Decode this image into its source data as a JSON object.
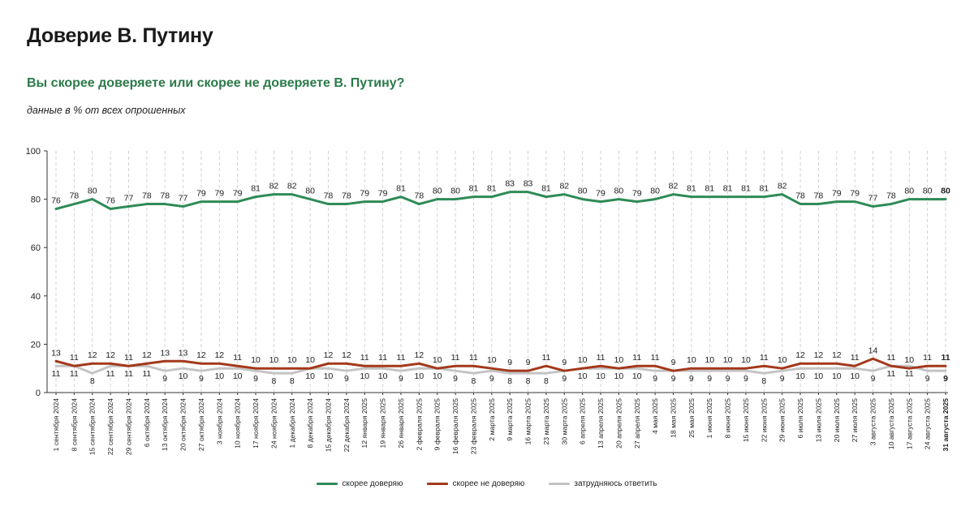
{
  "header": {
    "title": "Доверие В. Путину",
    "question": "Вы скорее доверяете или скорее не доверяете В. Путину?",
    "note": "данные в % от всех опрошенных"
  },
  "chart_data": {
    "type": "line",
    "ylim": [
      0,
      100
    ],
    "yticks": [
      0,
      20,
      40,
      60,
      80,
      100
    ],
    "grid": "vertical dashed",
    "legend_position": "bottom-center",
    "x": [
      "1 сентября 2024",
      "8 сентября 2024",
      "15 сентября 2024",
      "22 сентября 2024",
      "29 сентября 2024",
      "6 октября 2024",
      "13 октября 2024",
      "20 октября 2024",
      "27 октября 2024",
      "3 ноября 2024",
      "10 ноября 2024",
      "17 ноября 2024",
      "24 ноября 2024",
      "1 декабря 2024",
      "8 декабря 2024",
      "15 декабря 2024",
      "22 декабря 2024",
      "12 января 2025",
      "19 января 2025",
      "26 января 2025",
      "2 февраля 2025",
      "9 февраля 2025",
      "16 февраля 2025",
      "23 февраля 2025",
      "2 марта 2025",
      "9 марта 2025",
      "16 марта 2025",
      "23 марта 2025",
      "30 марта 2025",
      "6 апреля 2025",
      "13 апреля 2025",
      "20 апреля 2025",
      "27 апреля 2025",
      "4 мая 2025",
      "18 мая 2025",
      "25 мая 2025",
      "1 июня 2025",
      "8 июня 2025",
      "15 июня 2025",
      "22 июня 2025",
      "29 июня 2025",
      "6 июля 2025",
      "13 июля 2025",
      "20 июля 2025",
      "27 июля 2025",
      "3 августа 2025",
      "10 августа 2025",
      "17 августа 2025",
      "24 августа 2025",
      "31 августа 2025"
    ],
    "highlight_last": true,
    "series": [
      {
        "name": "скорее доверяю",
        "color": "#2e8b57",
        "label_position": "above",
        "values": [
          76,
          78,
          80,
          76,
          77,
          78,
          78,
          77,
          79,
          79,
          79,
          81,
          82,
          82,
          80,
          78,
          78,
          79,
          79,
          81,
          78,
          80,
          80,
          81,
          81,
          83,
          83,
          81,
          82,
          80,
          79,
          80,
          79,
          80,
          82,
          81,
          81,
          81,
          81,
          81,
          82,
          78,
          78,
          79,
          79,
          77,
          78,
          80,
          80,
          80
        ]
      },
      {
        "name": "скорее не доверяю",
        "color": "#a3391b",
        "label_position": "above",
        "values": [
          13,
          11,
          12,
          12,
          11,
          12,
          13,
          13,
          12,
          12,
          11,
          10,
          10,
          10,
          10,
          12,
          12,
          11,
          11,
          11,
          12,
          10,
          11,
          11,
          10,
          9,
          9,
          11,
          9,
          10,
          11,
          10,
          11,
          11,
          9,
          10,
          10,
          10,
          10,
          11,
          10,
          12,
          12,
          12,
          11,
          14,
          11,
          10,
          11,
          11
        ]
      },
      {
        "name": "затрудняюсь ответить",
        "color": "#c4c4c4",
        "label_position": "below",
        "values": [
          11,
          11,
          8,
          11,
          11,
          11,
          9,
          10,
          9,
          10,
          10,
          9,
          8,
          8,
          10,
          10,
          9,
          10,
          10,
          9,
          10,
          10,
          9,
          8,
          9,
          8,
          8,
          8,
          9,
          10,
          10,
          10,
          10,
          9,
          9,
          9,
          9,
          9,
          9,
          8,
          9,
          10,
          10,
          10,
          10,
          9,
          11,
          11,
          9,
          9
        ]
      }
    ]
  }
}
